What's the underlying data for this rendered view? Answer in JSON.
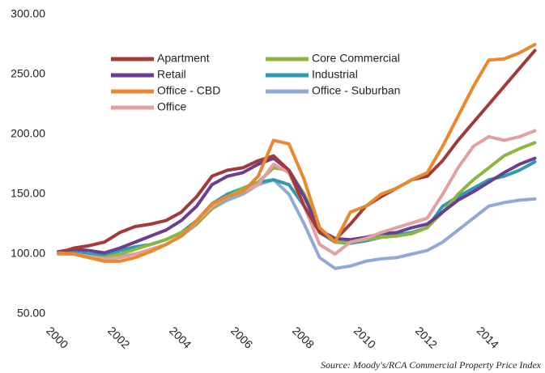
{
  "chart_data": {
    "type": "line",
    "source": "Source: Moody's/RCA  Commercial Property Price Index",
    "x": [
      2000,
      2000.5,
      2001,
      2001.5,
      2002,
      2002.5,
      2003,
      2003.5,
      2004,
      2004.5,
      2005,
      2005.5,
      2006,
      2006.5,
      2007,
      2007.5,
      2008,
      2008.5,
      2009,
      2009.5,
      2010,
      2010.5,
      2011,
      2011.5,
      2012,
      2012.5,
      2013,
      2013.5,
      2014,
      2014.5,
      2015,
      2015.5
    ],
    "xlim": [
      2000,
      2015.75
    ],
    "xticks": [
      2000,
      2002,
      2004,
      2006,
      2008,
      2010,
      2012,
      2014
    ],
    "ylim": [
      50,
      300
    ],
    "yticks": [
      {
        "value": 50,
        "label": "50.00"
      },
      {
        "value": 100,
        "label": "100.00"
      },
      {
        "value": 150,
        "label": "150.00"
      },
      {
        "value": 200,
        "label": "200.00"
      },
      {
        "value": 250,
        "label": "250.00"
      },
      {
        "value": 300,
        "label": "300.00"
      }
    ],
    "grid": false,
    "legend": "upper left",
    "series": [
      {
        "name": "Apartment",
        "color": "#a33a3a",
        "values": [
          101,
          105,
          107,
          110,
          118,
          123,
          125,
          128,
          135,
          148,
          165,
          170,
          172,
          178,
          182,
          170,
          140,
          118,
          112,
          125,
          140,
          148,
          155,
          162,
          165,
          178,
          195,
          210,
          225,
          240,
          255,
          270
        ]
      },
      {
        "name": "Core Commercial",
        "color": "#8cb542",
        "values": [
          100,
          100,
          98,
          97,
          100,
          104,
          108,
          112,
          118,
          125,
          138,
          148,
          155,
          160,
          172,
          170,
          150,
          122,
          110,
          110,
          112,
          114,
          115,
          117,
          122,
          135,
          150,
          162,
          172,
          182,
          188,
          193
        ]
      },
      {
        "name": "Retail",
        "color": "#6a3f8f",
        "values": [
          102,
          104,
          103,
          101,
          105,
          110,
          115,
          120,
          128,
          140,
          158,
          165,
          168,
          175,
          180,
          170,
          148,
          120,
          113,
          112,
          114,
          117,
          118,
          122,
          125,
          135,
          145,
          152,
          160,
          168,
          175,
          180
        ]
      },
      {
        "name": "Industrial",
        "color": "#2e9bb0",
        "values": [
          101,
          102,
          100,
          99,
          103,
          106,
          108,
          112,
          118,
          128,
          142,
          150,
          155,
          160,
          162,
          158,
          140,
          118,
          110,
          109,
          111,
          114,
          116,
          118,
          122,
          140,
          148,
          155,
          162,
          165,
          170,
          177
        ]
      },
      {
        "name": "Office - CBD",
        "color": "#e8892f",
        "values": [
          101,
          100,
          97,
          94,
          94,
          97,
          102,
          108,
          115,
          128,
          142,
          148,
          152,
          165,
          195,
          192,
          162,
          122,
          110,
          135,
          140,
          150,
          155,
          162,
          168,
          190,
          215,
          240,
          262,
          263,
          268,
          275
        ]
      },
      {
        "name": "Office - Suburban",
        "color": "#92a9d6",
        "values": [
          100,
          100,
          97,
          96,
          98,
          100,
          103,
          108,
          115,
          125,
          138,
          145,
          150,
          158,
          162,
          150,
          125,
          97,
          88,
          90,
          94,
          96,
          97,
          100,
          103,
          110,
          120,
          130,
          140,
          143,
          145,
          146
        ]
      },
      {
        "name": "Office",
        "color": "#e2a0a0",
        "values": [
          100,
          100,
          98,
          96,
          97,
          100,
          104,
          108,
          115,
          127,
          140,
          148,
          152,
          158,
          175,
          168,
          140,
          108,
          100,
          110,
          113,
          118,
          122,
          126,
          130,
          150,
          172,
          190,
          198,
          195,
          198,
          203
        ]
      }
    ]
  }
}
